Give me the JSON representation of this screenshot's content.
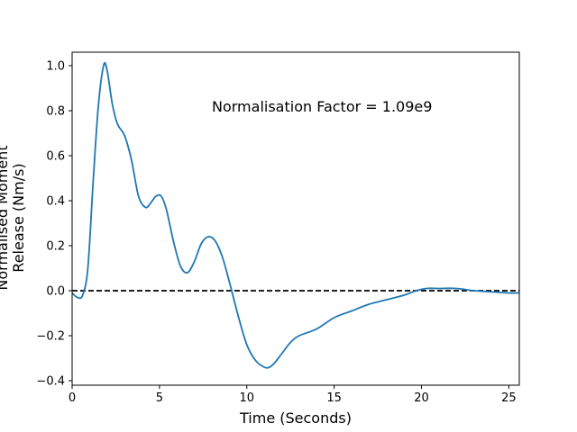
{
  "chart_data": {
    "type": "line",
    "xlabel": "Time (Seconds)",
    "ylabel_lines": [
      "Normalised Moment",
      "Release (Nm/s)"
    ],
    "annotation": "Normalisation Factor = 1.09e9",
    "xlim": [
      0,
      25.6
    ],
    "ylim": [
      -0.42,
      1.06
    ],
    "x_ticks": [
      0,
      5,
      10,
      15,
      20,
      25
    ],
    "y_ticks": [
      -0.4,
      -0.2,
      0.0,
      0.2,
      0.4,
      0.6,
      0.8,
      1.0
    ],
    "x_tick_labels": [
      "0",
      "5",
      "10",
      "15",
      "20",
      "25"
    ],
    "y_tick_labels": [
      "−0.4",
      "−0.2",
      "0.0",
      "0.2",
      "0.4",
      "0.6",
      "0.8",
      "1.0"
    ],
    "grid": false,
    "reference_line": {
      "y": 0,
      "style": "dashed",
      "color": "#000000"
    },
    "series": [
      {
        "color": "#1f77b4",
        "x": [
          0,
          0.3,
          0.6,
          0.9,
          1.2,
          1.5,
          1.8,
          2.0,
          2.3,
          2.6,
          3.0,
          3.4,
          3.8,
          4.2,
          4.5,
          4.8,
          5.1,
          5.4,
          5.8,
          6.2,
          6.6,
          7.0,
          7.4,
          7.8,
          8.2,
          8.6,
          9.0,
          9.5,
          10.0,
          10.5,
          11.0,
          11.3,
          11.6,
          12.0,
          12.5,
          13.0,
          14.0,
          15.0,
          16.0,
          17.0,
          18.0,
          19.0,
          19.7,
          20.3,
          21.0,
          22.0,
          23.0,
          24.0,
          25.0,
          25.6
        ],
        "y": [
          -0.01,
          -0.03,
          -0.02,
          0.1,
          0.48,
          0.82,
          1.0,
          0.98,
          0.83,
          0.74,
          0.69,
          0.58,
          0.42,
          0.37,
          0.39,
          0.42,
          0.42,
          0.36,
          0.22,
          0.11,
          0.08,
          0.13,
          0.21,
          0.24,
          0.22,
          0.15,
          0.04,
          -0.11,
          -0.24,
          -0.31,
          -0.34,
          -0.34,
          -0.32,
          -0.28,
          -0.23,
          -0.2,
          -0.17,
          -0.12,
          -0.09,
          -0.06,
          -0.04,
          -0.02,
          0.0,
          0.01,
          0.01,
          0.01,
          0.0,
          -0.005,
          -0.01,
          -0.01
        ]
      }
    ]
  }
}
